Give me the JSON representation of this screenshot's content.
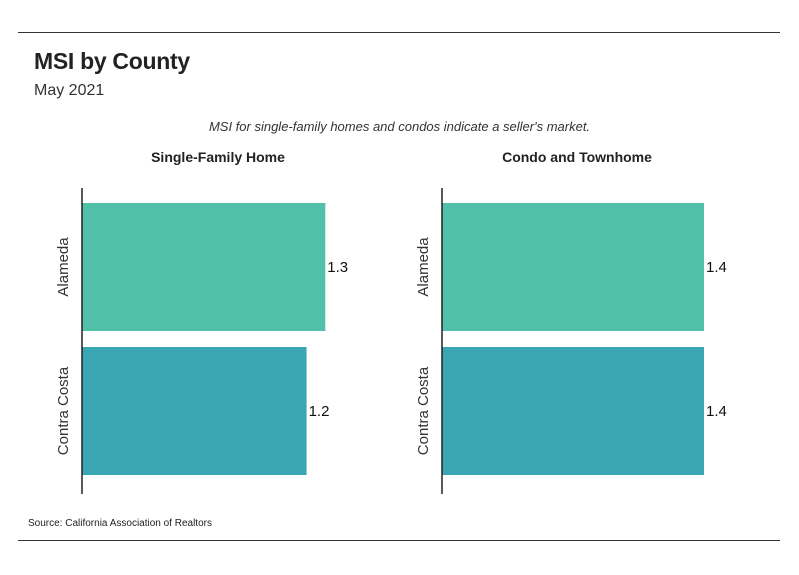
{
  "header": {
    "title": "MSI by County",
    "subtitle": "May 2021",
    "note": "MSI for single-family homes and condos indicate a seller's market."
  },
  "footer": {
    "source": "Source:  California Association of Realtors"
  },
  "colors": {
    "alameda": "#52bfa9",
    "contra_costa": "#3aa6b4",
    "axis": "#222222"
  },
  "chart_data": [
    {
      "type": "bar",
      "orientation": "horizontal",
      "title": "Single-Family Home",
      "categories": [
        "Alameda",
        "Contra Costa"
      ],
      "values": [
        1.3,
        1.2
      ],
      "xlim": [
        0,
        1.4
      ],
      "grid": false
    },
    {
      "type": "bar",
      "orientation": "horizontal",
      "title": "Condo and Townhome",
      "categories": [
        "Alameda",
        "Contra Costa"
      ],
      "values": [
        1.4,
        1.4
      ],
      "xlim": [
        0,
        1.4
      ],
      "grid": false
    }
  ]
}
